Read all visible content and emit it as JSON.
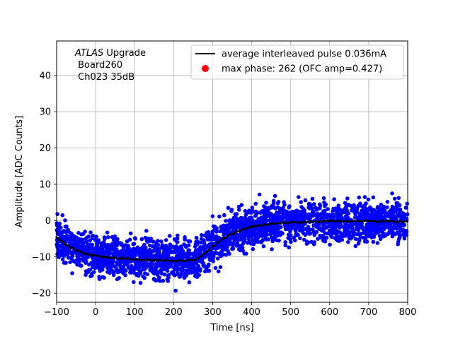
{
  "chart_data": {
    "type": "scatter",
    "title": "",
    "xlabel": "Time [ns]",
    "ylabel": "Amplitude [ADC Counts]",
    "xlim": [
      -100,
      800
    ],
    "ylim": [
      -22.5,
      49.5
    ],
    "xticks": [
      -100,
      0,
      100,
      200,
      300,
      400,
      500,
      600,
      700,
      800
    ],
    "yticks": [
      -20,
      -10,
      0,
      10,
      20,
      30,
      40
    ],
    "xtick_labels": [
      "−100",
      "0",
      "100",
      "200",
      "300",
      "400",
      "500",
      "600",
      "700",
      "800"
    ],
    "ytick_labels": [
      "−20",
      "−10",
      "0",
      "10",
      "20",
      "30",
      "40"
    ],
    "grid": true,
    "legend_placement": "top-right",
    "annotation": {
      "line1_italic": "ATLAS",
      "line1_rest": " Upgrade",
      "line2": " Board260",
      "line3": " Ch023 35dB"
    },
    "series": [
      {
        "name": "average interleaved pulse 0.036mA",
        "kind": "line",
        "color": "#000000",
        "x": [
          -100,
          -80,
          -60,
          -40,
          -20,
          0,
          20,
          40,
          60,
          80,
          100,
          120,
          140,
          160,
          180,
          200,
          220,
          240,
          250,
          260,
          280,
          300,
          320,
          340,
          360,
          380,
          400,
          430,
          460,
          500,
          550,
          600,
          650,
          700,
          750,
          800
        ],
        "y": [
          -4.5,
          -6.2,
          -7.6,
          -8.6,
          -9.2,
          -9.6,
          -9.9,
          -10.2,
          -10.4,
          -10.5,
          -10.7,
          -10.8,
          -10.9,
          -10.9,
          -11.0,
          -11.0,
          -11.0,
          -10.9,
          -10.9,
          -10.5,
          -9.0,
          -7.2,
          -5.5,
          -4.2,
          -3.2,
          -2.4,
          -1.8,
          -1.2,
          -0.8,
          -0.5,
          -0.3,
          -0.2,
          -0.1,
          -0.1,
          -0.2,
          -0.3
        ]
      },
      {
        "name": "max phase: 262 (OFC amp=0.427)",
        "kind": "scatter",
        "color": "#ff0000",
        "x": [],
        "y": []
      },
      {
        "name": "",
        "kind": "scatter-band",
        "color": "#0000ff",
        "spread": 4.2,
        "outlier_points": [
          [
            -98,
            1.8
          ],
          [
            -85,
            1.5
          ],
          [
            30,
            -3.3
          ],
          [
            90,
            -3.5
          ],
          [
            130,
            -2.8
          ],
          [
            190,
            -4.2
          ],
          [
            205,
            -19.3
          ],
          [
            265,
            -15
          ],
          [
            320,
            -12.8
          ],
          [
            315,
            -14
          ],
          [
            420,
            7.2
          ],
          [
            460,
            6.8
          ],
          [
            520,
            6.5
          ],
          [
            585,
            6.2
          ],
          [
            690,
            6.5
          ],
          [
            760,
            7.5
          ],
          [
            775,
            -6.5
          ],
          [
            405,
            -6.5
          ],
          [
            560,
            -6.5
          ],
          [
            10,
            -16
          ],
          [
            150,
            -16.2
          ],
          [
            240,
            -17
          ],
          [
            350,
            -7.8
          ],
          [
            470,
            -5.5
          ],
          [
            620,
            -5.5
          ],
          [
            -60,
            -14.5
          ],
          [
            60,
            -15.8
          ],
          [
            110,
            -15.2
          ],
          [
            340,
            3.5
          ],
          [
            300,
            1.2
          ]
        ]
      }
    ]
  }
}
